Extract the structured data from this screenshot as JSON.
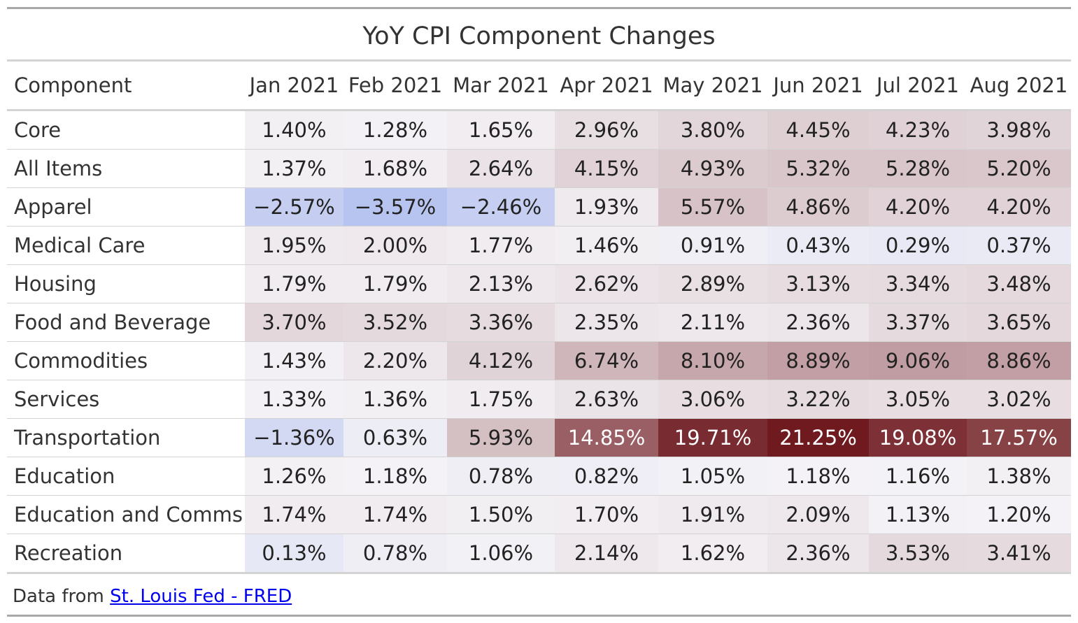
{
  "chart_data": {
    "type": "table",
    "title": "YoY CPI Component Changes",
    "columns": [
      "Component",
      "Jan 2021",
      "Feb 2021",
      "Mar 2021",
      "Apr 2021",
      "May 2021",
      "Jun 2021",
      "Jul 2021",
      "Aug 2021"
    ],
    "rows": [
      {
        "name": "Core",
        "values": [
          1.4,
          1.28,
          1.65,
          2.96,
          3.8,
          4.45,
          4.23,
          3.98
        ]
      },
      {
        "name": "All Items",
        "values": [
          1.37,
          1.68,
          2.64,
          4.15,
          4.93,
          5.32,
          5.28,
          5.2
        ]
      },
      {
        "name": "Apparel",
        "values": [
          -2.57,
          -3.57,
          -2.46,
          1.93,
          5.57,
          4.86,
          4.2,
          4.2
        ]
      },
      {
        "name": "Medical Care",
        "values": [
          1.95,
          2.0,
          1.77,
          1.46,
          0.91,
          0.43,
          0.29,
          0.37
        ]
      },
      {
        "name": "Housing",
        "values": [
          1.79,
          1.79,
          2.13,
          2.62,
          2.89,
          3.13,
          3.34,
          3.48
        ]
      },
      {
        "name": "Food and Beverage",
        "values": [
          3.7,
          3.52,
          3.36,
          2.35,
          2.11,
          2.36,
          3.37,
          3.65
        ]
      },
      {
        "name": "Commodities",
        "values": [
          1.43,
          2.2,
          4.12,
          6.74,
          8.1,
          8.89,
          9.06,
          8.86
        ]
      },
      {
        "name": "Services",
        "values": [
          1.33,
          1.36,
          1.75,
          2.63,
          3.06,
          3.22,
          3.05,
          3.02
        ]
      },
      {
        "name": "Transportation",
        "values": [
          -1.36,
          0.63,
          5.93,
          14.85,
          19.71,
          21.25,
          19.08,
          17.57
        ]
      },
      {
        "name": "Education",
        "values": [
          1.26,
          1.18,
          0.78,
          0.82,
          1.05,
          1.18,
          1.16,
          1.38
        ]
      },
      {
        "name": "Education and Comms",
        "values": [
          1.74,
          1.74,
          1.5,
          1.7,
          1.91,
          2.09,
          1.13,
          1.2
        ]
      },
      {
        "name": "Recreation",
        "values": [
          0.13,
          0.78,
          1.06,
          2.14,
          1.62,
          2.36,
          3.53,
          3.41
        ]
      }
    ],
    "value_suffix": "%",
    "color_scale": {
      "low": "#b8c4f0",
      "mid": "#f4f2f6",
      "high": "#6e1a1f",
      "low_value": -3.57,
      "mid_value": 1.2,
      "high_value": 21.25
    }
  },
  "footer": {
    "prefix": "Data from ",
    "link_text": "St. Louis Fed - FRED"
  }
}
